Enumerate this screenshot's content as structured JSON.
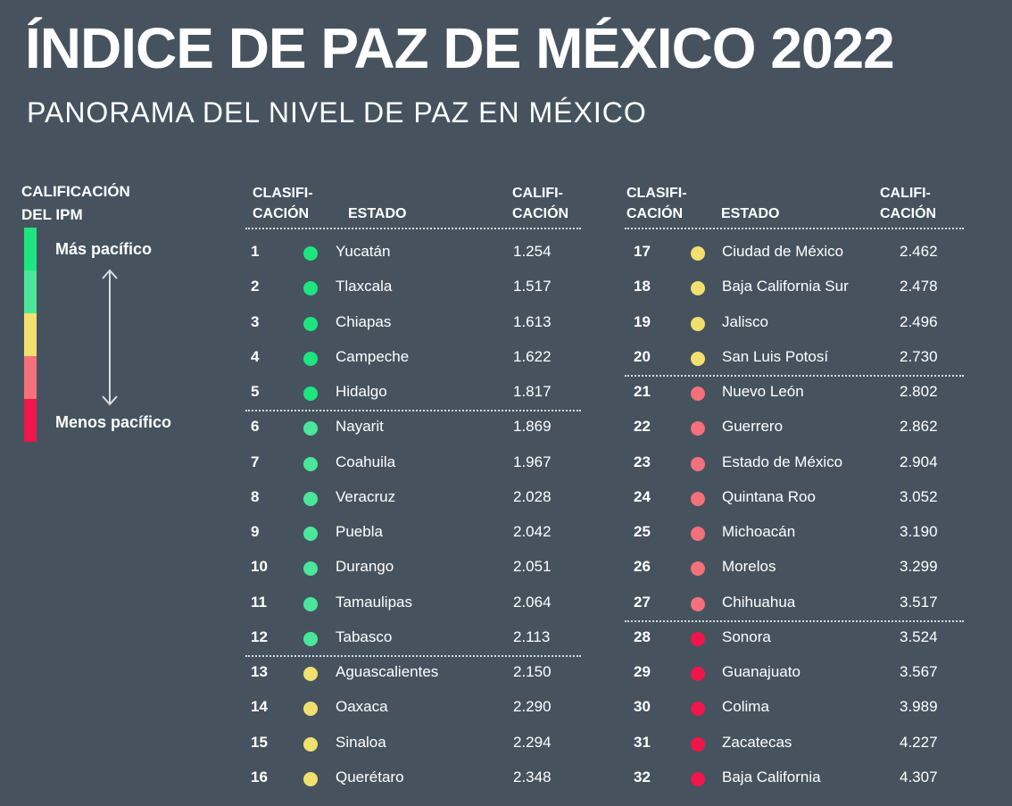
{
  "title": "ÍNDICE DE PAZ DE MÉXICO 2022",
  "subtitle": "PANORAMA DEL NIVEL DE PAZ EN MÉXICO",
  "legend": {
    "title_line1": "CALIFICACIÓN",
    "title_line2": "DEL IPM",
    "top_label": "Más pacífico",
    "bottom_label": "Menos pacífico",
    "colors": [
      "#1de57f",
      "#4ae79a",
      "#f2e06e",
      "#f4707a",
      "#f0154a"
    ]
  },
  "headers": {
    "rank_line1": "CLASIFI-",
    "rank_line2": "CACIÓN",
    "state": "ESTADO",
    "score_line1": "CALIFI-",
    "score_line2": "CACIÓN"
  },
  "chart_data": {
    "type": "table",
    "columns": [
      "CLASIFICACIÓN",
      "ESTADO",
      "CALIFICACIÓN"
    ],
    "tier_colors": {
      "1": "#1de57f",
      "2": "#4ae79a",
      "3": "#f2e06e",
      "4": "#f4707a",
      "5": "#f0154a"
    },
    "rows": [
      {
        "rank": "1",
        "state": "Yucatán",
        "score": "1.254",
        "tier": 1
      },
      {
        "rank": "2",
        "state": "Tlaxcala",
        "score": "1.517",
        "tier": 1
      },
      {
        "rank": "3",
        "state": "Chiapas",
        "score": "1.613",
        "tier": 1
      },
      {
        "rank": "4",
        "state": "Campeche",
        "score": "1.622",
        "tier": 1
      },
      {
        "rank": "5",
        "state": "Hidalgo",
        "score": "1.817",
        "tier": 1
      },
      {
        "rank": "6",
        "state": "Nayarit",
        "score": "1.869",
        "tier": 2
      },
      {
        "rank": "7",
        "state": "Coahuila",
        "score": "1.967",
        "tier": 2
      },
      {
        "rank": "8",
        "state": "Veracruz",
        "score": "2.028",
        "tier": 2
      },
      {
        "rank": "9",
        "state": "Puebla",
        "score": "2.042",
        "tier": 2
      },
      {
        "rank": "10",
        "state": "Durango",
        "score": "2.051",
        "tier": 2
      },
      {
        "rank": "11",
        "state": "Tamaulipas",
        "score": "2.064",
        "tier": 2
      },
      {
        "rank": "12",
        "state": "Tabasco",
        "score": "2.113",
        "tier": 2
      },
      {
        "rank": "13",
        "state": "Aguascalientes",
        "score": "2.150",
        "tier": 3
      },
      {
        "rank": "14",
        "state": "Oaxaca",
        "score": "2.290",
        "tier": 3
      },
      {
        "rank": "15",
        "state": "Sinaloa",
        "score": "2.294",
        "tier": 3
      },
      {
        "rank": "16",
        "state": "Querétaro",
        "score": "2.348",
        "tier": 3
      },
      {
        "rank": "17",
        "state": "Ciudad de México",
        "score": "2.462",
        "tier": 3
      },
      {
        "rank": "18",
        "state": "Baja California Sur",
        "score": "2.478",
        "tier": 3
      },
      {
        "rank": "19",
        "state": "Jalisco",
        "score": "2.496",
        "tier": 3
      },
      {
        "rank": "20",
        "state": "San Luis Potosí",
        "score": "2.730",
        "tier": 3
      },
      {
        "rank": "21",
        "state": "Nuevo León",
        "score": "2.802",
        "tier": 4
      },
      {
        "rank": "22",
        "state": "Guerrero",
        "score": "2.862",
        "tier": 4
      },
      {
        "rank": "23",
        "state": "Estado de México",
        "score": "2.904",
        "tier": 4
      },
      {
        "rank": "24",
        "state": "Quintana Roo",
        "score": "3.052",
        "tier": 4
      },
      {
        "rank": "25",
        "state": "Michoacán",
        "score": "3.190",
        "tier": 4
      },
      {
        "rank": "26",
        "state": "Morelos",
        "score": "3.299",
        "tier": 4
      },
      {
        "rank": "27",
        "state": "Chihuahua",
        "score": "3.517",
        "tier": 4
      },
      {
        "rank": "28",
        "state": "Sonora",
        "score": "3.524",
        "tier": 5
      },
      {
        "rank": "29",
        "state": "Guanajuato",
        "score": "3.567",
        "tier": 5
      },
      {
        "rank": "30",
        "state": "Colima",
        "score": "3.989",
        "tier": 5
      },
      {
        "rank": "31",
        "state": "Zacatecas",
        "score": "4.227",
        "tier": 5
      },
      {
        "rank": "32",
        "state": "Baja California",
        "score": "4.307",
        "tier": 5
      }
    ]
  }
}
